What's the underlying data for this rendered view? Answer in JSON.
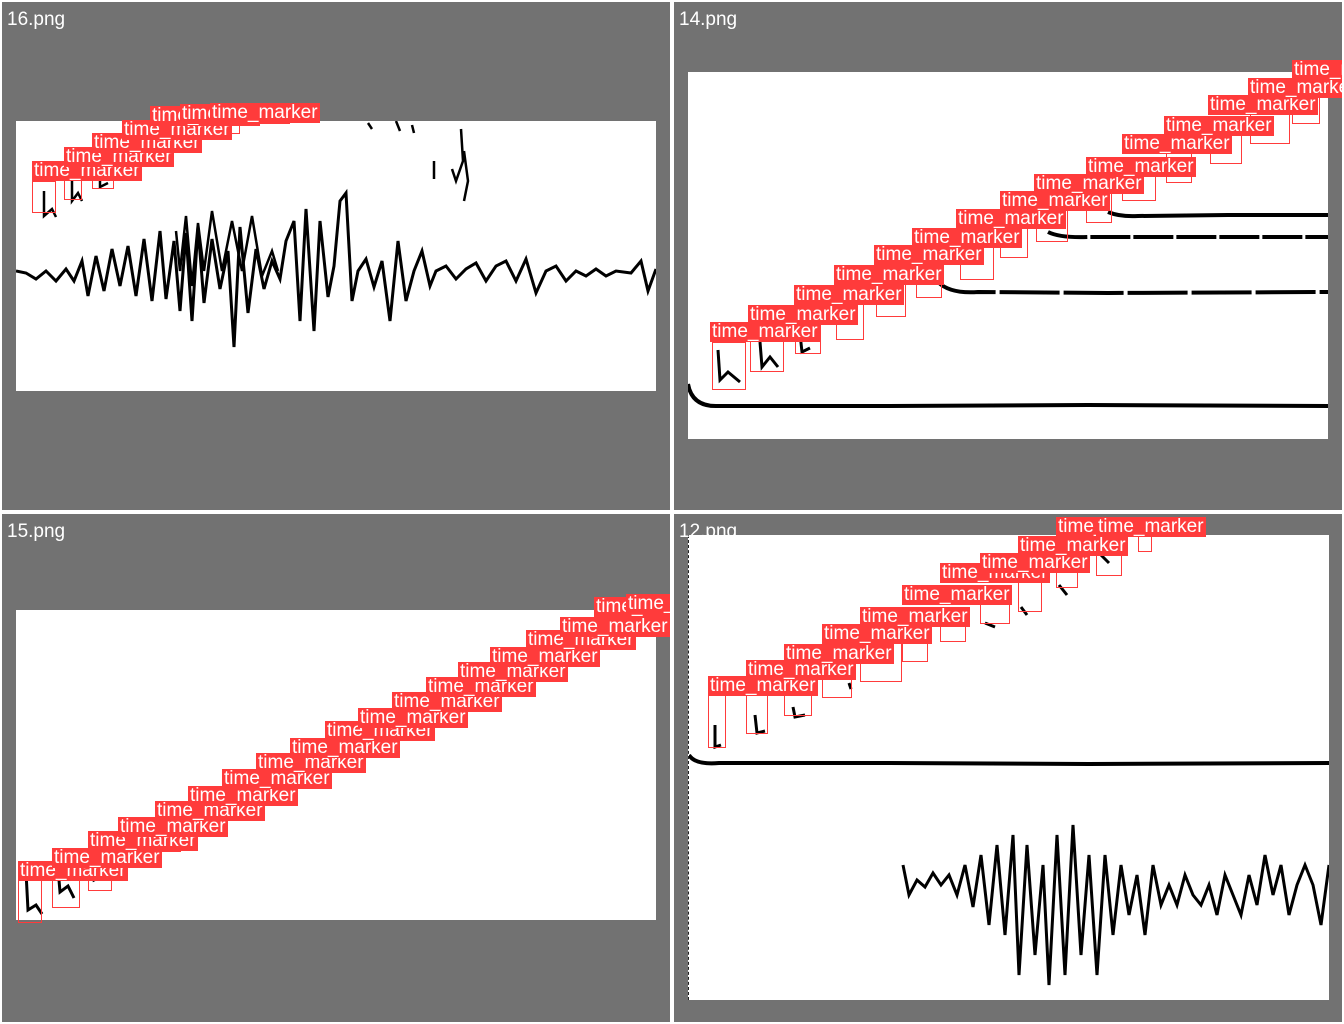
{
  "panels": [
    {
      "title": "16.png",
      "label": "time_marker"
    },
    {
      "title": "14.png",
      "label": "time_marker"
    },
    {
      "title": "15.png",
      "label": "time_marker"
    },
    {
      "title": "12.png",
      "label": "time_marker"
    }
  ],
  "colors": {
    "background": "#727272",
    "box": "#ff3b3b",
    "trace": "#000000"
  }
}
